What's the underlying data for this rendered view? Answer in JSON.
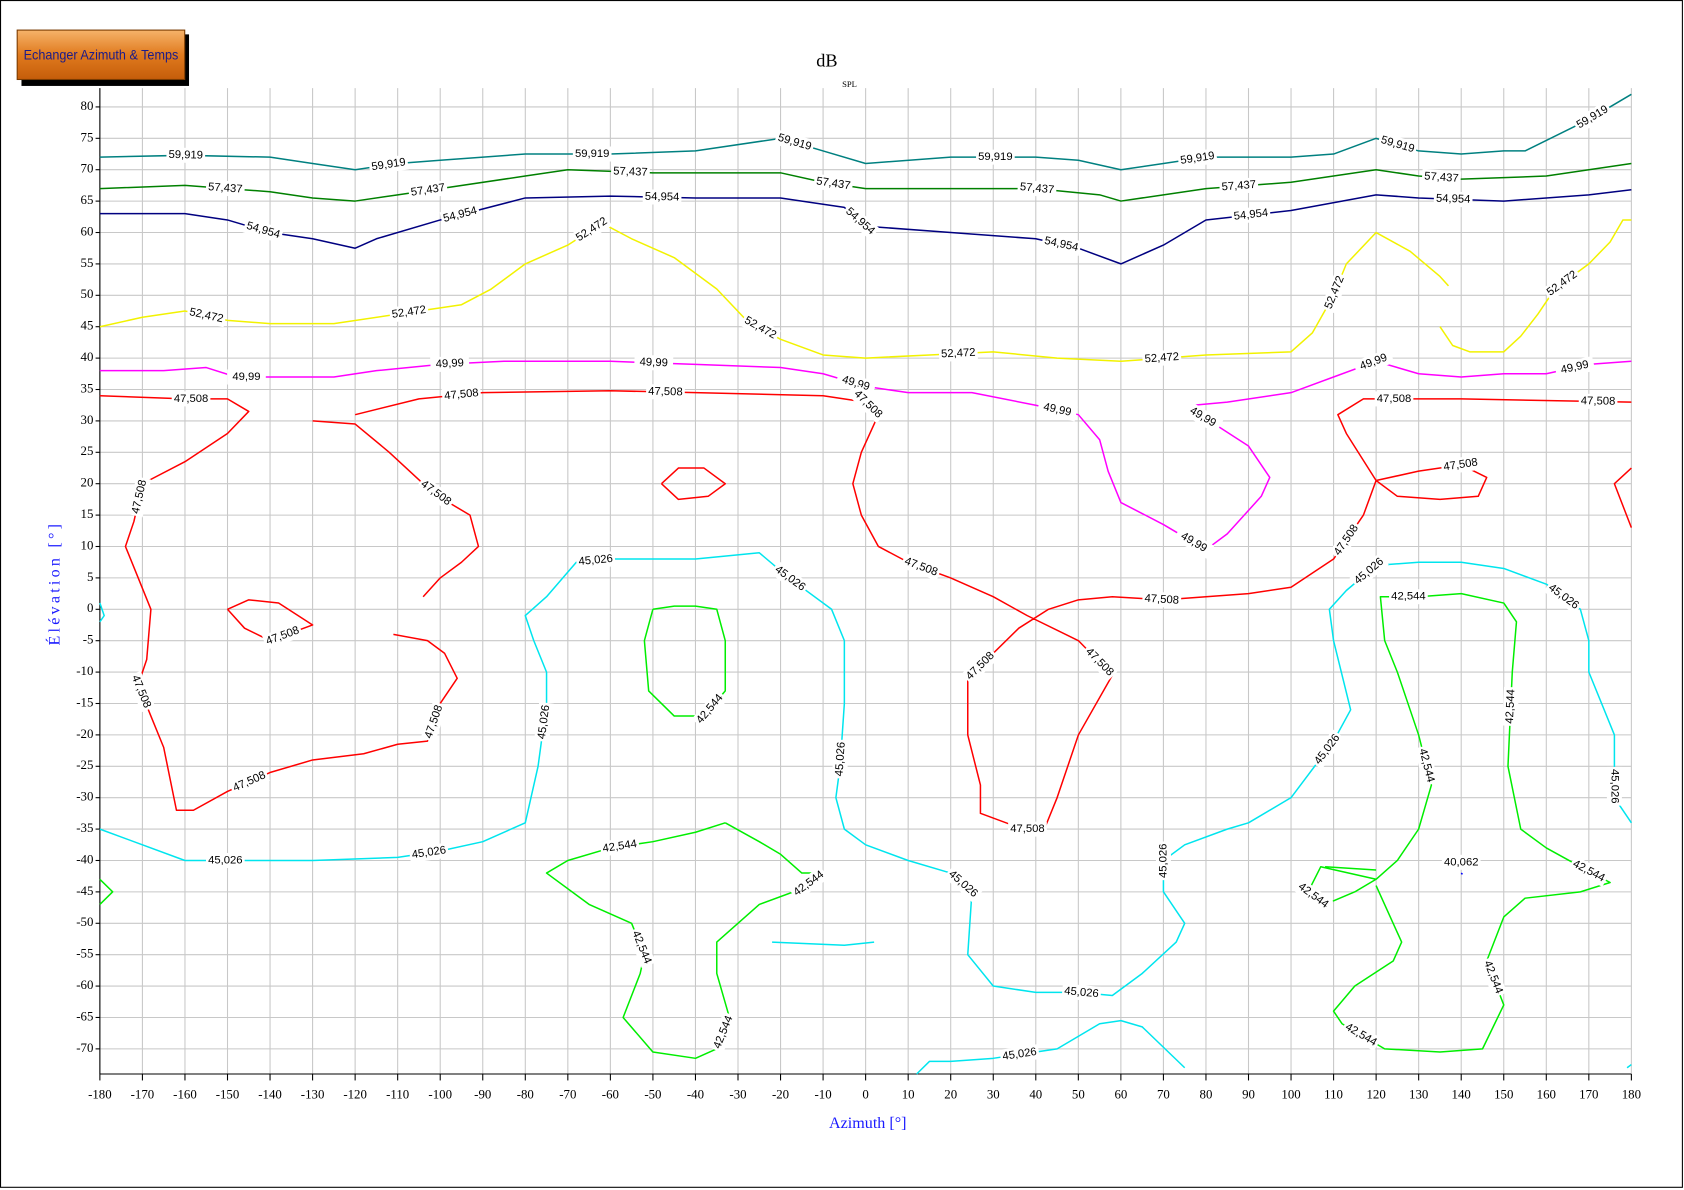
{
  "toolbar": {
    "button": "Echanger Azimuth & Temps"
  },
  "chart_data": {
    "type": "contour",
    "title": "dB",
    "title_subscript": "SPL",
    "x_label": "Azimuth [°]",
    "y_label": "Élévation [°]",
    "xlim": [
      -180,
      180
    ],
    "ylim": [
      -74,
      83
    ],
    "xticks": [
      -180,
      -170,
      -160,
      -150,
      -140,
      -130,
      -120,
      -110,
      -100,
      -90,
      -80,
      -70,
      -60,
      -50,
      -40,
      -30,
      -20,
      -10,
      0,
      10,
      20,
      30,
      40,
      50,
      60,
      70,
      80,
      90,
      100,
      110,
      120,
      130,
      140,
      150,
      160,
      170,
      180
    ],
    "yticks": [
      -70,
      -65,
      -60,
      -55,
      -50,
      -45,
      -40,
      -35,
      -30,
      -25,
      -20,
      -15,
      -10,
      -5,
      0,
      5,
      10,
      15,
      20,
      25,
      30,
      35,
      40,
      45,
      50,
      55,
      60,
      65,
      70,
      75,
      80
    ],
    "grid": true,
    "series": [
      {
        "name": "59,919",
        "color": "#008080",
        "x": [
          -180,
          -160,
          -140,
          -130,
          -120,
          -110,
          -100,
          -80,
          -60,
          -40,
          -20,
          -10,
          0,
          20,
          40,
          50,
          60,
          70,
          80,
          100,
          110,
          120,
          130,
          140,
          150,
          155,
          170,
          180
        ],
        "y": [
          72,
          72.3,
          72,
          71,
          70,
          71,
          71.5,
          72.5,
          72.5,
          73,
          75,
          73,
          71,
          72,
          72,
          71.5,
          70,
          71,
          72,
          72,
          72.5,
          75,
          73,
          72.5,
          73,
          73,
          78,
          82
        ]
      },
      {
        "name": "57,437",
        "color": "#008000",
        "x": [
          -180,
          -160,
          -150,
          -140,
          -130,
          -120,
          -110,
          -100,
          -80,
          -70,
          -50,
          -30,
          -20,
          -10,
          0,
          20,
          40,
          55,
          60,
          70,
          80,
          100,
          120,
          130,
          140,
          160,
          170,
          180
        ],
        "y": [
          67,
          67.5,
          67,
          66.5,
          65.5,
          65,
          66,
          67,
          69,
          70,
          69.5,
          69.5,
          69.5,
          68,
          67,
          67,
          67,
          66,
          65,
          66,
          67,
          68,
          70,
          69,
          68.5,
          69,
          70,
          71
        ]
      },
      {
        "name": "54,954",
        "color": "#000080",
        "x": [
          -180,
          -160,
          -150,
          -140,
          -130,
          -120,
          -115,
          -100,
          -80,
          -60,
          -40,
          -20,
          -5,
          0,
          20,
          30,
          40,
          50,
          60,
          70,
          80,
          100,
          120,
          130,
          150,
          170,
          180
        ],
        "y": [
          63,
          63,
          62,
          60,
          59,
          57.5,
          59,
          62,
          65.5,
          65.8,
          65.5,
          65.5,
          64,
          61,
          60,
          59.5,
          59,
          57.5,
          55,
          58,
          62,
          63.5,
          66,
          65.5,
          65,
          66,
          66.8
        ]
      },
      {
        "name": "52,472",
        "color": "#f2f200",
        "x": [
          -180,
          -170,
          -160,
          -150,
          -140,
          -125,
          -110,
          -95,
          -88,
          -80,
          -70,
          -62,
          -55,
          -45,
          -35,
          -28,
          -20,
          -10,
          0,
          15,
          30,
          45,
          60,
          80,
          100,
          105,
          110,
          113,
          120,
          128,
          135,
          137,
          null,
          135,
          138,
          142,
          150,
          154,
          158,
          162,
          170,
          175,
          178,
          180
        ],
        "y": [
          45,
          46.5,
          47.5,
          46,
          45.5,
          45.5,
          47,
          48.5,
          51,
          55,
          58,
          61.5,
          59,
          56,
          51,
          46,
          43,
          40.5,
          40,
          40.5,
          41,
          40,
          39.5,
          40.5,
          41,
          44,
          50,
          55,
          60,
          57,
          53,
          51.5,
          null,
          45,
          42,
          41,
          41,
          43.5,
          47,
          51,
          55,
          58.5,
          62,
          62
        ]
      },
      {
        "name": "49,99",
        "color": "#ff00ff",
        "x": [
          -180,
          -165,
          -155,
          -148,
          -140,
          -125,
          -115,
          -100,
          -85,
          -60,
          -40,
          -20,
          -10,
          0,
          10,
          25,
          40,
          50,
          55,
          57,
          60,
          70,
          80,
          85,
          93,
          95,
          90,
          82,
          77,
          77,
          85,
          100,
          110,
          120,
          130,
          140,
          150,
          160,
          170,
          180
        ],
        "y": [
          38,
          38,
          38.5,
          37,
          37,
          37,
          38,
          39,
          39.5,
          39.5,
          39,
          38.5,
          37.5,
          35.5,
          34.5,
          34.5,
          32.5,
          31,
          27,
          22,
          17,
          13.5,
          9.5,
          12,
          18,
          21,
          26,
          29.5,
          31.5,
          32.5,
          33,
          34.5,
          37,
          39.5,
          37.5,
          37,
          37.5,
          37.5,
          39,
          39.5
        ]
      },
      {
        "name": "47,508",
        "color": "#ff0000",
        "x": [
          -180,
          -160,
          -150,
          -145,
          -150,
          -160,
          -170,
          -172,
          -174,
          -171,
          -168,
          -169,
          -171,
          -168,
          -165,
          -162,
          -158,
          -150,
          -140,
          -130,
          -118,
          -110,
          -103,
          -100,
          -96,
          -99,
          -103,
          -111,
          null,
          -104,
          -100,
          -95,
          -91,
          -93,
          -98,
          -104,
          -112,
          -120,
          -130,
          null,
          -120,
          -105,
          -90,
          -60,
          -40,
          -10,
          0,
          3,
          -1,
          -3,
          -1,
          3,
          10,
          20,
          30,
          38,
          50,
          58,
          50,
          45,
          42,
          37,
          27,
          27,
          24,
          24,
          36,
          43,
          50,
          58,
          70,
          90,
          100,
          110,
          117,
          120,
          113,
          111,
          117,
          140,
          180,
          null,
          -48,
          -44,
          -38,
          -33,
          -37,
          -44,
          -48,
          null,
          -150,
          -145,
          -138,
          -130,
          -140,
          -146,
          -150,
          null,
          120,
          130,
          140,
          146,
          144,
          135,
          125,
          120,
          null,
          180,
          176,
          180
        ],
        "y": [
          34,
          33.5,
          33.5,
          31.5,
          28,
          23.5,
          20,
          14,
          10,
          5,
          0,
          -8,
          -12,
          -17,
          -22,
          -32,
          -32,
          -29,
          -26,
          -24,
          -23,
          -21.5,
          -21,
          -15,
          -11,
          -7,
          -5,
          -4,
          null,
          2,
          5,
          7.5,
          10,
          15,
          17,
          20,
          25,
          29.5,
          30,
          null,
          31,
          33.5,
          34.5,
          34.8,
          34.5,
          34,
          33,
          31,
          25,
          20,
          15,
          10,
          7.5,
          5,
          2,
          -1,
          -5,
          -10.5,
          -20,
          -30,
          -35,
          -35,
          -32.5,
          -28,
          -20,
          -11,
          -3,
          0,
          1.5,
          2,
          1.5,
          2.5,
          3.5,
          8,
          15,
          20.5,
          28,
          31,
          33.5,
          33.5,
          33,
          null,
          20,
          22.5,
          22.5,
          20,
          18,
          17.5,
          20,
          null,
          0,
          1.5,
          1,
          -2.5,
          -5,
          -3,
          0,
          null,
          20.5,
          22,
          23,
          21,
          18,
          17.5,
          18,
          20.5,
          null,
          22.5,
          20,
          13
        ]
      },
      {
        "name": "45,026",
        "color": "#00e5ee",
        "x": [
          -180,
          -170,
          -160,
          -150,
          -130,
          -110,
          -100,
          -90,
          -80,
          -77,
          -75,
          -75,
          -78,
          -80,
          -75,
          -68,
          -60,
          -40,
          -25,
          -18,
          -8,
          -5,
          -5,
          -6,
          -7,
          -5,
          0,
          10,
          20,
          25,
          24,
          30,
          40,
          50,
          58,
          65,
          73,
          75,
          70,
          70,
          75,
          85,
          90,
          100,
          110,
          114,
          110,
          109,
          113,
          120,
          130,
          140,
          150,
          160,
          168,
          170,
          170,
          176,
          176,
          180,
          null,
          -180,
          -179,
          -180,
          null,
          -22,
          -5,
          2,
          null,
          12,
          15,
          20,
          30,
          45,
          55,
          60,
          65,
          75,
          null,
          179,
          180
        ],
        "y": [
          -35,
          -37.5,
          -40,
          -40,
          -40,
          -39.5,
          -38.5,
          -37,
          -34,
          -25,
          -15,
          -10,
          -5,
          -1,
          2,
          7.5,
          8,
          8,
          9,
          5,
          0,
          -5,
          -15,
          -25,
          -30,
          -35,
          -37.5,
          -40,
          -42,
          -45,
          -55,
          -60,
          -61,
          -61,
          -61.5,
          -58,
          -53,
          -50,
          -45,
          -40,
          -37.5,
          -35,
          -34,
          -30,
          -21,
          -16,
          -5,
          0,
          3,
          7,
          7.5,
          7.5,
          6.5,
          4,
          0,
          -5,
          -10,
          -20,
          -30,
          -34,
          null,
          1,
          -1,
          -2,
          null,
          -53,
          -53.5,
          -53,
          null,
          -74,
          -72,
          -72,
          -71.5,
          -70,
          -66,
          -65.5,
          -66.5,
          -73,
          null,
          -73,
          -72.5
        ]
      },
      {
        "name": "42,544",
        "color": "#00ee00",
        "x": [
          -50,
          -45,
          -40,
          -35,
          -33,
          -33,
          -38,
          -45,
          -51,
          -52,
          -50,
          null,
          -33,
          -25,
          -20,
          -15,
          -10,
          -15,
          -25,
          -35,
          -35,
          -32,
          -35,
          -40,
          -50,
          -57,
          -53,
          -52,
          -55,
          -65,
          -75,
          -70,
          -60,
          -50,
          -40,
          -33,
          null,
          120,
          107,
          104,
          108,
          115,
          120,
          125,
          130,
          133,
          130,
          125,
          122,
          121,
          130,
          140,
          150,
          153,
          152,
          151,
          154,
          160,
          168,
          175,
          168,
          155,
          150,
          146,
          150,
          145,
          135,
          122,
          112,
          110,
          115,
          124,
          126,
          120,
          null,
          108,
          120,
          null,
          -180,
          -177,
          -180
        ],
        "y": [
          0,
          0.5,
          0.5,
          0,
          -5,
          -13,
          -17,
          -17,
          -13,
          -5,
          0,
          null,
          -34,
          -37,
          -39,
          -42,
          -42,
          -44.5,
          -47,
          -53,
          -58,
          -65,
          -70,
          -71.5,
          -70.5,
          -65,
          -58,
          -55,
          -50,
          -47,
          -42,
          -40,
          -38,
          -37,
          -35.5,
          -34,
          null,
          -43,
          -41,
          -45,
          -47,
          -45,
          -43,
          -40,
          -35,
          -28,
          -20,
          -10,
          -5,
          2,
          2,
          2.5,
          1,
          -2,
          -10,
          -25,
          -35,
          -38,
          -41,
          -43.5,
          -45,
          -46,
          -49,
          -56,
          -63,
          -70,
          -70.5,
          -70,
          -66,
          -64,
          -60,
          -56,
          -53,
          -44,
          null,
          -41,
          -41.5,
          null,
          -43,
          -45,
          -47
        ]
      },
      {
        "name": "40,062",
        "color": "#0000ff",
        "x": [
          140,
          140.3
        ],
        "y": [
          -42,
          -42.2
        ]
      }
    ]
  }
}
